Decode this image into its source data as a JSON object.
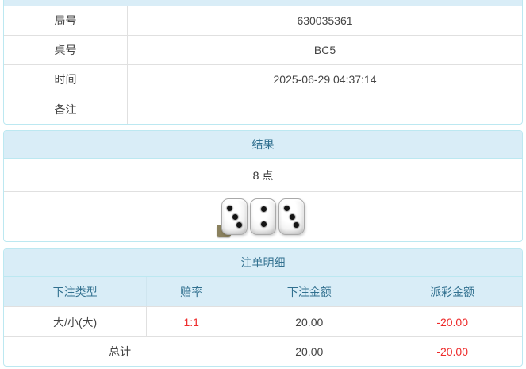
{
  "colors": {
    "header_bg": "#d9edf7",
    "header_text": "#31708f",
    "panel_border": "#bce8f1",
    "negative": "#ee2b2b"
  },
  "info_panel": {
    "rows": [
      {
        "label": "局号",
        "value": "630035361"
      },
      {
        "label": "桌号",
        "value": "BC5"
      },
      {
        "label": "时间",
        "value": "2025-06-29 04:37:14"
      },
      {
        "label": "备注",
        "value": ""
      }
    ]
  },
  "result_panel": {
    "title": "结果",
    "points_text": "8 点",
    "dice": [
      3,
      2,
      3
    ],
    "info_badge": "i"
  },
  "bets_panel": {
    "title": "注单明细",
    "columns": [
      "下注类型",
      "赔率",
      "下注金额",
      "派彩金额"
    ],
    "rows": [
      {
        "bet_type": "大/小(大)",
        "odds": "1:1",
        "bet_amount": "20.00",
        "payout": "-20.00"
      }
    ],
    "total": {
      "label": "总计",
      "bet_amount": "20.00",
      "payout": "-20.00"
    }
  }
}
